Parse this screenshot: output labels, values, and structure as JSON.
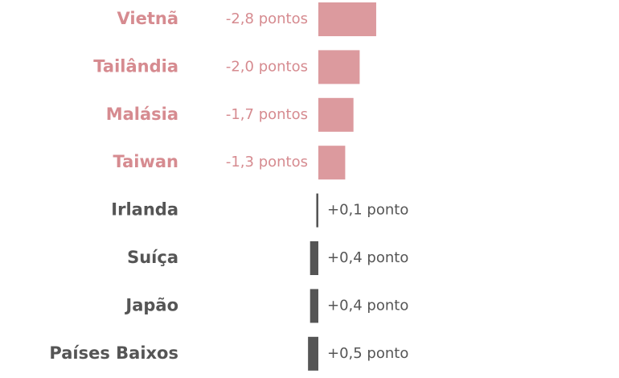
{
  "chart_data": {
    "type": "bar",
    "orientation": "horizontal",
    "categories": [
      "Vietnã",
      "Tailândia",
      "Malásia",
      "Taiwan",
      "Irlanda",
      "Suíça",
      "Japão",
      "Países Baixos"
    ],
    "values": [
      -2.8,
      -2.0,
      -1.7,
      -1.3,
      0.1,
      0.4,
      0.4,
      0.5
    ],
    "value_labels": [
      "-2,8 pontos",
      "-2,0 pontos",
      "-1,7 pontos",
      "-1,3 pontos",
      "+0,1 ponto",
      "+0,4 ponto",
      "+0,4 ponto",
      "+0,5 ponto"
    ],
    "colors": [
      "#dc9a9e",
      "#dc9a9e",
      "#dc9a9e",
      "#dc9a9e",
      "#555555",
      "#555555",
      "#555555",
      "#555555"
    ]
  }
}
